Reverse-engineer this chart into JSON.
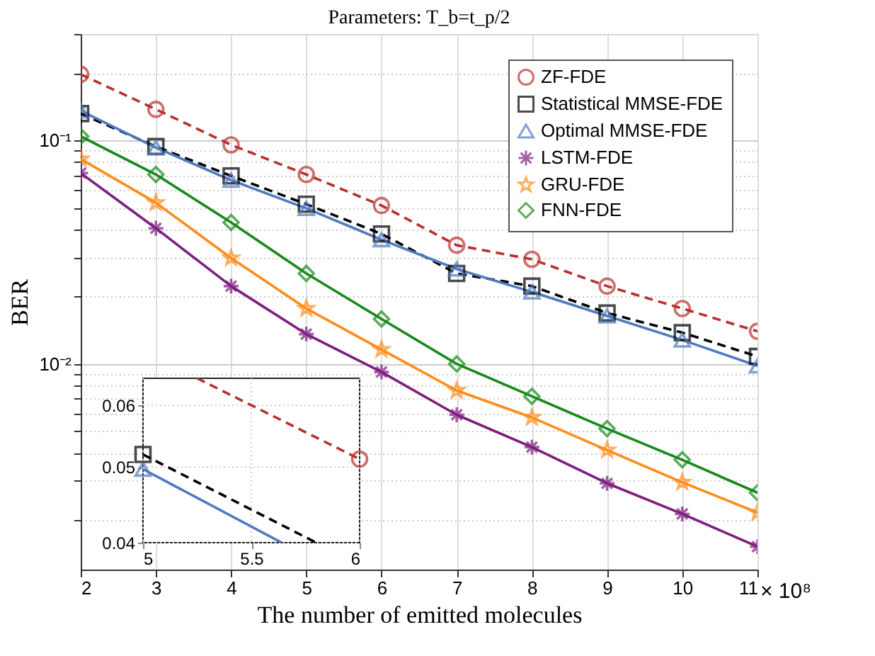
{
  "chart_data": [
    {
      "type": "line",
      "title": "Parameters: T_b=t_p/2",
      "xlabel": "The number of emitted molecules",
      "ylabel": "BER",
      "annotations": [
        "× 10⁸"
      ],
      "log": true,
      "grid": true,
      "legend": "top right",
      "x": [
        2,
        3,
        4,
        5,
        6,
        7,
        8,
        9,
        10,
        11
      ],
      "xlim": [
        2,
        11
      ],
      "xticks": [
        2,
        3,
        4,
        5,
        6,
        7,
        8,
        9,
        10,
        11
      ],
      "ylim": [
        0.0012,
        0.3
      ],
      "yticks": [
        {
          "value": 0.002,
          "label": null
        },
        {
          "value": 0.003,
          "label": null
        },
        {
          "value": 0.004,
          "label": null
        },
        {
          "value": 0.005,
          "label": null
        },
        {
          "value": 0.006,
          "label": null
        },
        {
          "value": 0.007,
          "label": null
        },
        {
          "value": 0.008,
          "label": null
        },
        {
          "value": 0.009,
          "label": null
        },
        {
          "value": 0.01,
          "label": "10⁻²"
        },
        {
          "value": 0.02,
          "label": null
        },
        {
          "value": 0.03,
          "label": null
        },
        {
          "value": 0.04,
          "label": null
        },
        {
          "value": 0.05,
          "label": null
        },
        {
          "value": 0.06,
          "label": null
        },
        {
          "value": 0.07,
          "label": null
        },
        {
          "value": 0.08,
          "label": null
        },
        {
          "value": 0.09,
          "label": null
        },
        {
          "value": 0.1,
          "label": "10⁻¹"
        },
        {
          "value": 0.2,
          "label": null
        },
        {
          "value": 0.3,
          "label": null
        }
      ],
      "series": [
        {
          "name": "ZF-FDE",
          "color": "#b8312f",
          "line_style": "dashed",
          "marker": "circle",
          "values": [
            0.198,
            0.138,
            0.0957,
            0.0705,
            0.0512,
            0.034,
            0.0294,
            0.0223,
            0.0177,
            0.014
          ]
        },
        {
          "name": "Statistical MMSE-FDE",
          "color": "#000000",
          "line_style": "dashed",
          "marker": "square",
          "values": [
            0.132,
            0.094,
            0.0695,
            0.0519,
            0.0382,
            0.0254,
            0.0223,
            0.0169,
            0.0138,
            0.0108
          ]
        },
        {
          "name": "Optimal MMSE-FDE",
          "color": "#4f7ac0",
          "line_style": "solid",
          "marker": "triangle",
          "values": [
            0.136,
            0.093,
            0.0665,
            0.0497,
            0.036,
            0.0266,
            0.021,
            0.0164,
            0.0128,
            0.0098
          ]
        },
        {
          "name": "LSTM-FDE",
          "color": "#7e1e80",
          "line_style": "solid",
          "marker": "cross",
          "values": [
            0.0715,
            0.0405,
            0.0223,
            0.0136,
            0.0092,
            0.00592,
            0.00424,
            0.00292,
            0.00213,
            0.00152
          ]
        },
        {
          "name": "GRU-FDE",
          "color": "#ff8c1a",
          "line_style": "solid",
          "marker": "star",
          "values": [
            0.0827,
            0.0527,
            0.0298,
            0.0177,
            0.0116,
            0.0076,
            0.00576,
            0.00411,
            0.00295,
            0.00216
          ]
        },
        {
          "name": "FNN-FDE",
          "color": "#17891a",
          "line_style": "solid",
          "marker": "diamond",
          "values": [
            0.1045,
            0.0705,
            0.043,
            0.0254,
            0.0159,
            0.01,
            0.00716,
            0.00513,
            0.00372,
            0.00265
          ]
        }
      ]
    },
    {
      "type": "line",
      "log": true,
      "grid": true,
      "xlim": [
        5,
        6
      ],
      "xticks": [
        {
          "value": 5,
          "label": "5"
        },
        {
          "value": 5.5,
          "label": "5.5"
        },
        {
          "value": 6,
          "label": "6"
        }
      ],
      "ylim": [
        0.04,
        0.065
      ],
      "yticks": [
        0.04,
        0.05,
        0.06
      ],
      "series": [
        {
          "color": "#b8312f",
          "line_style": "dashed",
          "marker": "none",
          "x": [
            5.25,
            6
          ],
          "values": [
            0.065,
            0.0512
          ]
        },
        {
          "color": "#000000",
          "line_style": "dashed",
          "marker": "none",
          "x": [
            5,
            5.8
          ],
          "values": [
            0.0519,
            0.04
          ]
        },
        {
          "color": "#4f7ac0",
          "line_style": "solid",
          "marker": "none",
          "x": [
            5,
            5.64
          ],
          "values": [
            0.0497,
            0.04
          ]
        },
        {
          "type": "scatter",
          "color": "#b8312f",
          "marker": "circle",
          "x": [
            6
          ],
          "values": [
            0.0512
          ]
        },
        {
          "type": "scatter",
          "color": "#000000",
          "marker": "square",
          "x": [
            5
          ],
          "values": [
            0.0519
          ]
        },
        {
          "type": "scatter",
          "color": "#4f7ac0",
          "marker": "triangle",
          "x": [
            5
          ],
          "values": [
            0.0497
          ]
        }
      ]
    }
  ]
}
